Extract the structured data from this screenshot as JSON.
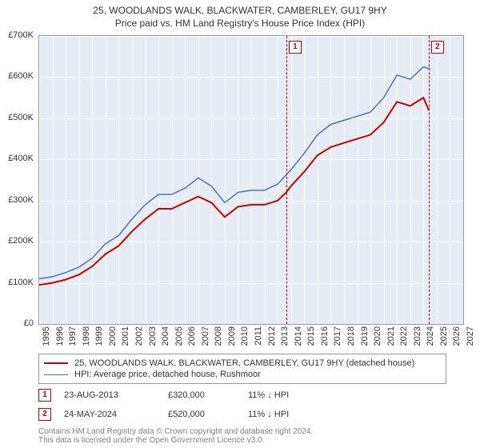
{
  "title": {
    "line1": "25, WOODLANDS WALK, BLACKWATER, CAMBERLEY, GU17 9HY",
    "line2": "Price paid vs. HM Land Registry's House Price Index (HPI)"
  },
  "chart": {
    "type": "line",
    "background_color": "#e6ecf3",
    "grid_color": "#ffffff",
    "border_color": "#999999",
    "xlim": [
      1995,
      2027
    ],
    "ylim": [
      0,
      700000
    ],
    "y_ticks": [
      0,
      100000,
      200000,
      300000,
      400000,
      500000,
      600000,
      700000
    ],
    "y_tick_labels": [
      "£0",
      "£100K",
      "£200K",
      "£300K",
      "£400K",
      "£500K",
      "£600K",
      "£700K"
    ],
    "x_ticks": [
      1995,
      1996,
      1997,
      1998,
      1999,
      2000,
      2001,
      2002,
      2003,
      2004,
      2005,
      2006,
      2007,
      2008,
      2009,
      2010,
      2011,
      2012,
      2013,
      2014,
      2015,
      2016,
      2017,
      2018,
      2019,
      2020,
      2021,
      2022,
      2023,
      2024,
      2025,
      2026,
      2027
    ],
    "series": [
      {
        "name": "price_paid",
        "color": "#cc0000",
        "width": 2,
        "x": [
          1995,
          1996,
          1997,
          1998,
          1999,
          2000,
          2001,
          2002,
          2003,
          2004,
          2005,
          2006,
          2007,
          2008,
          2009,
          2010,
          2011,
          2012,
          2013,
          2013.65,
          2014,
          2015,
          2016,
          2017,
          2018,
          2019,
          2020,
          2021,
          2022,
          2023,
          2024,
          2024.4
        ],
        "y": [
          95000,
          100000,
          108000,
          120000,
          140000,
          170000,
          190000,
          225000,
          255000,
          280000,
          280000,
          295000,
          310000,
          295000,
          260000,
          285000,
          290000,
          290000,
          300000,
          320000,
          335000,
          370000,
          410000,
          430000,
          440000,
          450000,
          460000,
          490000,
          540000,
          530000,
          550000,
          520000
        ]
      },
      {
        "name": "hpi",
        "color": "#4b73b3",
        "width": 1.5,
        "x": [
          1995,
          1996,
          1997,
          1998,
          1999,
          2000,
          2001,
          2002,
          2003,
          2004,
          2005,
          2006,
          2007,
          2008,
          2009,
          2010,
          2011,
          2012,
          2013,
          2014,
          2015,
          2016,
          2017,
          2018,
          2019,
          2020,
          2021,
          2022,
          2023,
          2024,
          2024.5
        ],
        "y": [
          110000,
          115000,
          125000,
          138000,
          160000,
          195000,
          215000,
          255000,
          290000,
          315000,
          315000,
          330000,
          355000,
          335000,
          295000,
          320000,
          325000,
          325000,
          340000,
          375000,
          415000,
          460000,
          485000,
          495000,
          505000,
          515000,
          550000,
          605000,
          595000,
          625000,
          620000
        ]
      }
    ],
    "ref_lines": [
      {
        "badge": "1",
        "x": 2013.65
      },
      {
        "badge": "2",
        "x": 2024.4
      }
    ]
  },
  "legend": {
    "items": [
      {
        "color": "#cc0000",
        "width": 2,
        "label": "25, WOODLANDS WALK, BLACKWATER, CAMBERLEY, GU17 9HY (detached house)"
      },
      {
        "color": "#4b73b3",
        "width": 1.5,
        "label": "HPI: Average price, detached house, Rushmoor"
      }
    ]
  },
  "events": [
    {
      "badge": "1",
      "date": "23-AUG-2013",
      "price": "£320,000",
      "delta": "11% ↓ HPI"
    },
    {
      "badge": "2",
      "date": "24-MAY-2024",
      "price": "£520,000",
      "delta": "11% ↓ HPI"
    }
  ],
  "footnote": {
    "line1": "Contains HM Land Registry data © Crown copyright and database right 2024.",
    "line2": "This data is licensed under the Open Government Licence v3.0."
  }
}
